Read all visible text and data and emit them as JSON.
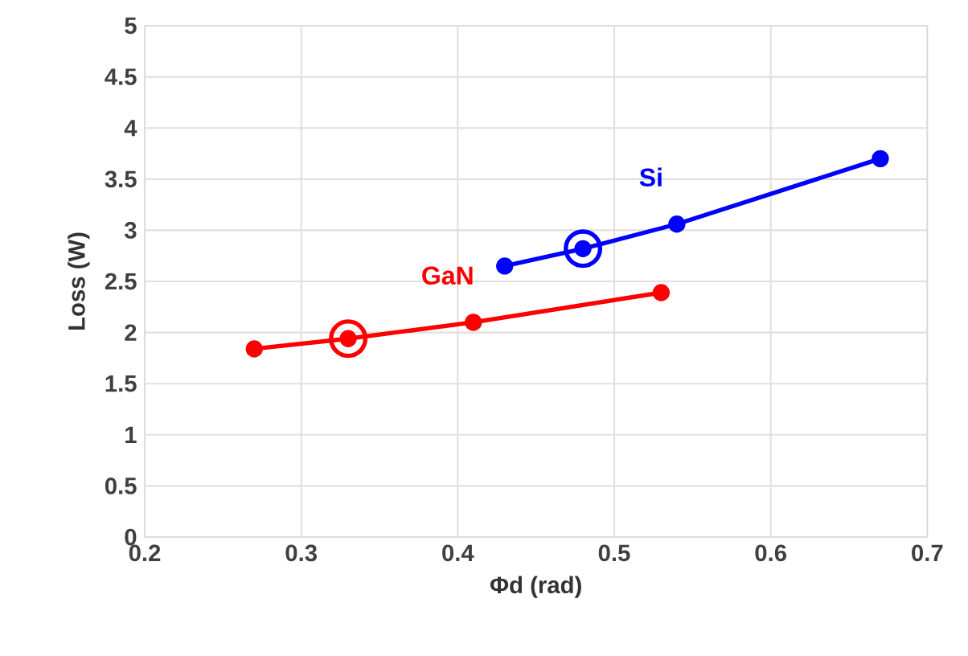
{
  "chart_data": {
    "type": "line",
    "xlabel": "Φd (rad)",
    "ylabel": "Loss (W)",
    "xlim": [
      0.2,
      0.7
    ],
    "xticks": [
      0.2,
      0.3,
      0.4,
      0.5,
      0.6,
      0.7
    ],
    "ylim": [
      0,
      5
    ],
    "yticks": [
      0,
      0.5,
      1,
      1.5,
      2,
      2.5,
      3,
      3.5,
      4,
      4.5,
      5
    ],
    "grid": true,
    "marker": "circle",
    "line_style": "solid",
    "series": [
      {
        "name": "GaN",
        "color": "#ff0000",
        "x": [
          0.27,
          0.33,
          0.41,
          0.53
        ],
        "values": [
          1.84,
          1.94,
          2.1,
          2.39
        ]
      },
      {
        "name": "Si",
        "color": "#0000ff",
        "x": [
          0.43,
          0.48,
          0.54,
          0.67
        ],
        "values": [
          2.65,
          2.82,
          3.06,
          3.7
        ]
      },
      {
        "type": "scatter",
        "color": "#ff0000",
        "x": [
          0.33
        ],
        "values": [
          1.94
        ]
      },
      {
        "type": "scatter",
        "color": "#0000ff",
        "x": [
          0.48
        ],
        "values": [
          2.82
        ]
      }
    ]
  }
}
